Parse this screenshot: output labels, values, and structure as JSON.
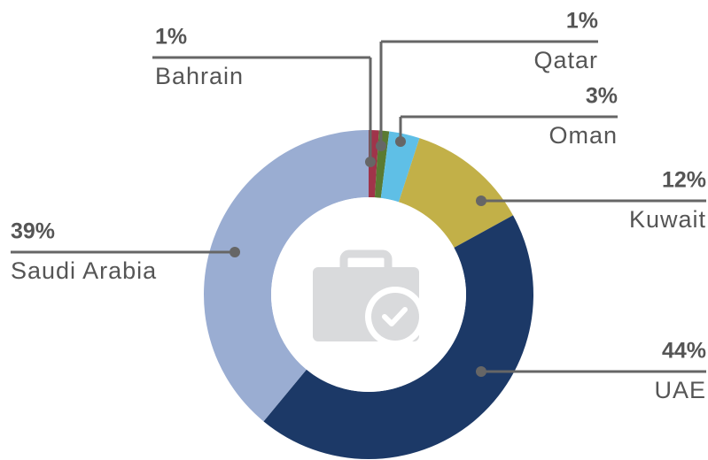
{
  "chart_data": {
    "type": "donut",
    "categories": [
      "Bahrain",
      "Qatar",
      "Oman",
      "Kuwait",
      "UAE",
      "Saudi Arabia"
    ],
    "values": [
      1,
      1,
      3,
      12,
      44,
      39
    ],
    "value_labels": [
      "1%",
      "1%",
      "3%",
      "12%",
      "44%",
      "39%"
    ],
    "colors": [
      "#a0344a",
      "#5a7a32",
      "#5fbfe6",
      "#c2b048",
      "#1c3967",
      "#9aadd2"
    ]
  }
}
